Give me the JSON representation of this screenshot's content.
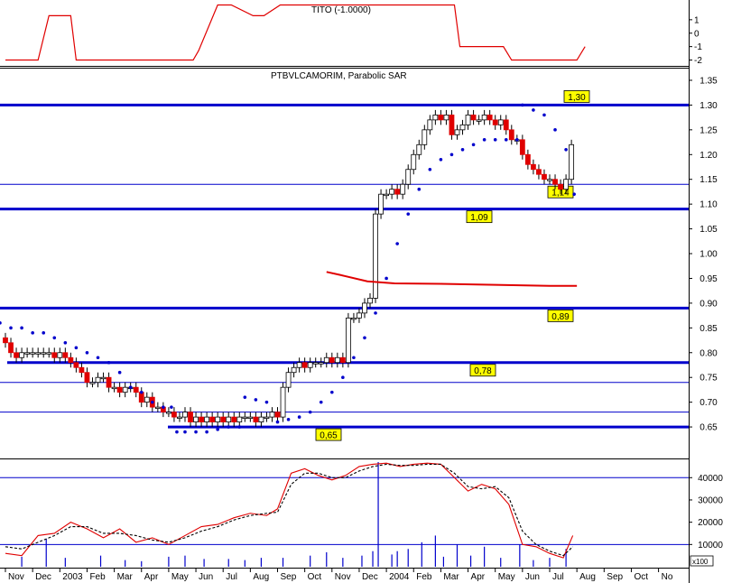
{
  "chart_data": [
    {
      "type": "line",
      "title": "TITO (-1.0000)",
      "yticks": [
        "1",
        "0",
        "-1",
        "-2"
      ],
      "ylim": [
        -2.3,
        2.2
      ],
      "color": "#e00000",
      "x": [
        0,
        1.2,
        1.6,
        2.4,
        2.6,
        6.9,
        7.1,
        7.8,
        8.3,
        9.1,
        9.5,
        10.1,
        10.4,
        16.5,
        16.7,
        18.3,
        18.6,
        21.0,
        21.3
      ],
      "y": [
        -2,
        -2,
        1.3,
        1.3,
        -2,
        -2,
        -1.3,
        2.1,
        2.1,
        1.3,
        1.3,
        2.1,
        2.1,
        2.1,
        -1,
        -1,
        -2,
        -2,
        -1
      ]
    },
    {
      "type": "candlestick",
      "title": "PTBVLCAMORIM, Parabolic SAR",
      "ylim": [
        0.59,
        1.37
      ],
      "yticks": [
        "1.35",
        "1.30",
        "1.25",
        "1.20",
        "1.15",
        "1.10",
        "1.05",
        "1.00",
        "0.95",
        "0.90",
        "0.85",
        "0.80",
        "0.75",
        "0.70",
        "0.65"
      ],
      "xticks": [
        "Nov",
        "Dec",
        "2003",
        "Feb",
        "Mar",
        "Apr",
        "May",
        "Jun",
        "Jul",
        "Aug",
        "Sep",
        "Oct",
        "Nov",
        "Dec",
        "2004",
        "Feb",
        "Mar",
        "Apr",
        "May",
        "Jun",
        "Jul",
        "Aug",
        "Sep",
        "Oct",
        "No"
      ],
      "levels": [
        {
          "value": 1.3,
          "label": "1,30",
          "thick": true
        },
        {
          "value": 1.14,
          "label": "1,14",
          "thick": false
        },
        {
          "value": 1.09,
          "label": "1,09",
          "thick": true
        },
        {
          "value": 0.89,
          "label": "0,89",
          "thick": true
        },
        {
          "value": 0.78,
          "label": "0,78",
          "thick": true
        },
        {
          "value": 0.74,
          "label": "",
          "thick": false
        },
        {
          "value": 0.68,
          "label": "",
          "thick": false
        },
        {
          "value": 0.65,
          "label": "0,65",
          "thick": true
        }
      ],
      "moving_average": {
        "color": "#e00000",
        "x": [
          11.8,
          12.3,
          13.3,
          14.3,
          16.0,
          18.0,
          20.0,
          21.0
        ],
        "y": [
          0.963,
          0.957,
          0.944,
          0.94,
          0.939,
          0.937,
          0.935,
          0.935
        ]
      },
      "closes": [
        [
          0.0,
          0.82
        ],
        [
          0.2,
          0.8
        ],
        [
          0.4,
          0.79
        ],
        [
          0.6,
          0.8
        ],
        [
          0.8,
          0.8
        ],
        [
          1.0,
          0.8
        ],
        [
          1.2,
          0.8
        ],
        [
          1.4,
          0.8
        ],
        [
          1.6,
          0.8
        ],
        [
          1.8,
          0.79
        ],
        [
          2.0,
          0.8
        ],
        [
          2.2,
          0.79
        ],
        [
          2.4,
          0.78
        ],
        [
          2.6,
          0.77
        ],
        [
          2.8,
          0.76
        ],
        [
          3.0,
          0.74
        ],
        [
          3.2,
          0.74
        ],
        [
          3.4,
          0.75
        ],
        [
          3.6,
          0.75
        ],
        [
          3.8,
          0.73
        ],
        [
          4.0,
          0.73
        ],
        [
          4.2,
          0.72
        ],
        [
          4.4,
          0.73
        ],
        [
          4.6,
          0.73
        ],
        [
          4.8,
          0.72
        ],
        [
          5.0,
          0.7
        ],
        [
          5.2,
          0.71
        ],
        [
          5.4,
          0.69
        ],
        [
          5.6,
          0.69
        ],
        [
          5.8,
          0.68
        ],
        [
          6.0,
          0.68
        ],
        [
          6.2,
          0.67
        ],
        [
          6.4,
          0.67
        ],
        [
          6.6,
          0.68
        ],
        [
          6.8,
          0.66
        ],
        [
          7.0,
          0.67
        ],
        [
          7.2,
          0.66
        ],
        [
          7.4,
          0.67
        ],
        [
          7.6,
          0.66
        ],
        [
          7.8,
          0.67
        ],
        [
          8.0,
          0.66
        ],
        [
          8.2,
          0.67
        ],
        [
          8.4,
          0.66
        ],
        [
          8.6,
          0.67
        ],
        [
          8.8,
          0.67
        ],
        [
          9.0,
          0.67
        ],
        [
          9.2,
          0.66
        ],
        [
          9.4,
          0.67
        ],
        [
          9.6,
          0.67
        ],
        [
          9.8,
          0.68
        ],
        [
          10.0,
          0.67
        ],
        [
          10.2,
          0.73
        ],
        [
          10.4,
          0.76
        ],
        [
          10.6,
          0.77
        ],
        [
          10.8,
          0.78
        ],
        [
          11.0,
          0.77
        ],
        [
          11.2,
          0.78
        ],
        [
          11.4,
          0.78
        ],
        [
          11.6,
          0.78
        ],
        [
          11.8,
          0.79
        ],
        [
          12.0,
          0.78
        ],
        [
          12.2,
          0.79
        ],
        [
          12.4,
          0.78
        ],
        [
          12.6,
          0.87
        ],
        [
          12.8,
          0.87
        ],
        [
          13.0,
          0.88
        ],
        [
          13.2,
          0.9
        ],
        [
          13.4,
          0.91
        ],
        [
          13.6,
          1.08
        ],
        [
          13.8,
          1.12
        ],
        [
          14.0,
          1.12
        ],
        [
          14.2,
          1.13
        ],
        [
          14.4,
          1.12
        ],
        [
          14.6,
          1.14
        ],
        [
          14.8,
          1.17
        ],
        [
          15.0,
          1.2
        ],
        [
          15.2,
          1.22
        ],
        [
          15.4,
          1.25
        ],
        [
          15.6,
          1.27
        ],
        [
          15.8,
          1.28
        ],
        [
          16.0,
          1.27
        ],
        [
          16.2,
          1.28
        ],
        [
          16.4,
          1.24
        ],
        [
          16.6,
          1.25
        ],
        [
          16.8,
          1.26
        ],
        [
          17.0,
          1.28
        ],
        [
          17.2,
          1.27
        ],
        [
          17.4,
          1.27
        ],
        [
          17.6,
          1.28
        ],
        [
          17.8,
          1.27
        ],
        [
          18.0,
          1.26
        ],
        [
          18.2,
          1.27
        ],
        [
          18.4,
          1.25
        ],
        [
          18.6,
          1.23
        ],
        [
          18.8,
          1.23
        ],
        [
          19.0,
          1.2
        ],
        [
          19.2,
          1.18
        ],
        [
          19.4,
          1.17
        ],
        [
          19.6,
          1.16
        ],
        [
          19.8,
          1.15
        ],
        [
          20.0,
          1.15
        ],
        [
          20.2,
          1.14
        ],
        [
          20.4,
          1.13
        ],
        [
          20.6,
          1.15
        ],
        [
          20.8,
          1.22
        ]
      ],
      "sar": [
        [
          -0.2,
          0.86
        ],
        [
          0.2,
          0.85
        ],
        [
          0.6,
          0.85
        ],
        [
          1.0,
          0.84
        ],
        [
          1.4,
          0.84
        ],
        [
          1.8,
          0.83
        ],
        [
          2.2,
          0.82
        ],
        [
          2.6,
          0.81
        ],
        [
          3.0,
          0.8
        ],
        [
          3.4,
          0.79
        ],
        [
          3.8,
          0.78
        ],
        [
          4.2,
          0.76
        ],
        [
          4.6,
          0.73
        ],
        [
          5.0,
          0.72
        ],
        [
          5.4,
          0.7
        ],
        [
          5.8,
          0.69
        ],
        [
          6.1,
          0.69
        ],
        [
          6.3,
          0.64
        ],
        [
          6.6,
          0.64
        ],
        [
          7.0,
          0.64
        ],
        [
          7.4,
          0.64
        ],
        [
          7.8,
          0.645
        ],
        [
          8.2,
          0.65
        ],
        [
          8.6,
          0.65
        ],
        [
          8.8,
          0.71
        ],
        [
          9.2,
          0.705
        ],
        [
          9.6,
          0.7
        ],
        [
          10.0,
          0.66
        ],
        [
          10.4,
          0.665
        ],
        [
          10.8,
          0.67
        ],
        [
          11.2,
          0.68
        ],
        [
          11.6,
          0.7
        ],
        [
          12.0,
          0.72
        ],
        [
          12.4,
          0.75
        ],
        [
          12.8,
          0.79
        ],
        [
          13.2,
          0.83
        ],
        [
          13.6,
          0.88
        ],
        [
          14.0,
          0.95
        ],
        [
          14.4,
          1.02
        ],
        [
          14.8,
          1.08
        ],
        [
          15.2,
          1.13
        ],
        [
          15.6,
          1.17
        ],
        [
          16.0,
          1.19
        ],
        [
          16.4,
          1.2
        ],
        [
          16.8,
          1.21
        ],
        [
          17.2,
          1.22
        ],
        [
          17.6,
          1.23
        ],
        [
          18.0,
          1.23
        ],
        [
          18.4,
          1.23
        ],
        [
          18.8,
          1.23
        ],
        [
          19.0,
          1.3
        ],
        [
          19.4,
          1.29
        ],
        [
          19.8,
          1.28
        ],
        [
          20.2,
          1.25
        ],
        [
          20.6,
          1.21
        ],
        [
          20.9,
          1.12
        ]
      ]
    },
    {
      "type": "line",
      "yticks": [
        "40000",
        "30000",
        "20000",
        "10000"
      ],
      "ylim": [
        0,
        47000
      ],
      "unit_label": "x100",
      "series": [
        {
          "style": "solid",
          "color": "#e00000",
          "x": [
            0,
            0.6,
            1.2,
            1.8,
            2.4,
            3.0,
            3.6,
            4.2,
            4.8,
            5.4,
            6.0,
            6.6,
            7.2,
            7.8,
            8.4,
            9.0,
            9.6,
            10.0,
            10.5,
            11.0,
            11.5,
            12.0,
            12.5,
            13.0,
            13.5,
            14.0,
            14.5,
            15.0,
            15.5,
            16.0,
            16.5,
            17.0,
            17.5,
            18.0,
            18.5,
            19.0,
            19.5,
            20.0,
            20.5,
            20.85
          ],
          "y": [
            6000,
            5000,
            14000,
            15000,
            20000,
            17000,
            13000,
            17000,
            11000,
            13000,
            10000,
            14000,
            18000,
            19000,
            22000,
            24000,
            23000,
            26000,
            42000,
            44000,
            41000,
            39000,
            41000,
            45000,
            46000,
            46500,
            45000,
            46000,
            46500,
            46000,
            40000,
            34000,
            37000,
            35000,
            28000,
            10000,
            9000,
            6000,
            4000,
            14000
          ]
        },
        {
          "style": "dashed",
          "color": "#000000",
          "x": [
            0,
            0.6,
            1.2,
            1.8,
            2.4,
            3.0,
            3.6,
            4.2,
            4.8,
            5.4,
            6.0,
            6.6,
            7.2,
            7.8,
            8.4,
            9.0,
            9.6,
            10.0,
            10.5,
            11.0,
            11.5,
            12.0,
            12.5,
            13.0,
            13.5,
            14.0,
            14.5,
            15.0,
            15.5,
            16.0,
            16.5,
            17.0,
            17.5,
            18.0,
            18.5,
            19.0,
            19.5,
            20.0,
            20.5,
            20.85
          ],
          "y": [
            9000,
            8000,
            11000,
            14000,
            18000,
            18000,
            15000,
            15000,
            14000,
            12000,
            11000,
            13000,
            16000,
            18000,
            21000,
            23000,
            24000,
            24500,
            37000,
            42000,
            42000,
            40000,
            40000,
            43000,
            45000,
            46000,
            45500,
            45500,
            46000,
            46000,
            42000,
            36000,
            35000,
            36000,
            31000,
            16000,
            10000,
            7000,
            5000,
            9000
          ]
        }
      ],
      "hlines": [
        40000,
        10000
      ],
      "volume_bars": [
        [
          0.6,
          4500
        ],
        [
          1.5,
          12500
        ],
        [
          2.2,
          4000
        ],
        [
          3.5,
          5000
        ],
        [
          4.4,
          3000
        ],
        [
          5.0,
          2500
        ],
        [
          6.0,
          4500
        ],
        [
          6.6,
          5000
        ],
        [
          7.3,
          3500
        ],
        [
          8.2,
          3500
        ],
        [
          8.8,
          3000
        ],
        [
          9.4,
          4000
        ],
        [
          10.2,
          4000
        ],
        [
          11.2,
          5000
        ],
        [
          11.8,
          6500
        ],
        [
          12.4,
          4000
        ],
        [
          13.1,
          5000
        ],
        [
          13.5,
          7000
        ],
        [
          14.2,
          5500
        ],
        [
          14.4,
          7000
        ],
        [
          14.8,
          8000
        ],
        [
          15.3,
          11000
        ],
        [
          15.8,
          14000
        ],
        [
          16.1,
          4500
        ],
        [
          16.6,
          10000
        ],
        [
          17.1,
          5000
        ],
        [
          17.6,
          9000
        ],
        [
          18.2,
          4000
        ],
        [
          18.9,
          10000
        ],
        [
          19.4,
          3000
        ],
        [
          20.0,
          4000
        ],
        [
          20.6,
          8000
        ]
      ],
      "volume_spike": {
        "x": 13.7,
        "value": 47000
      }
    }
  ]
}
